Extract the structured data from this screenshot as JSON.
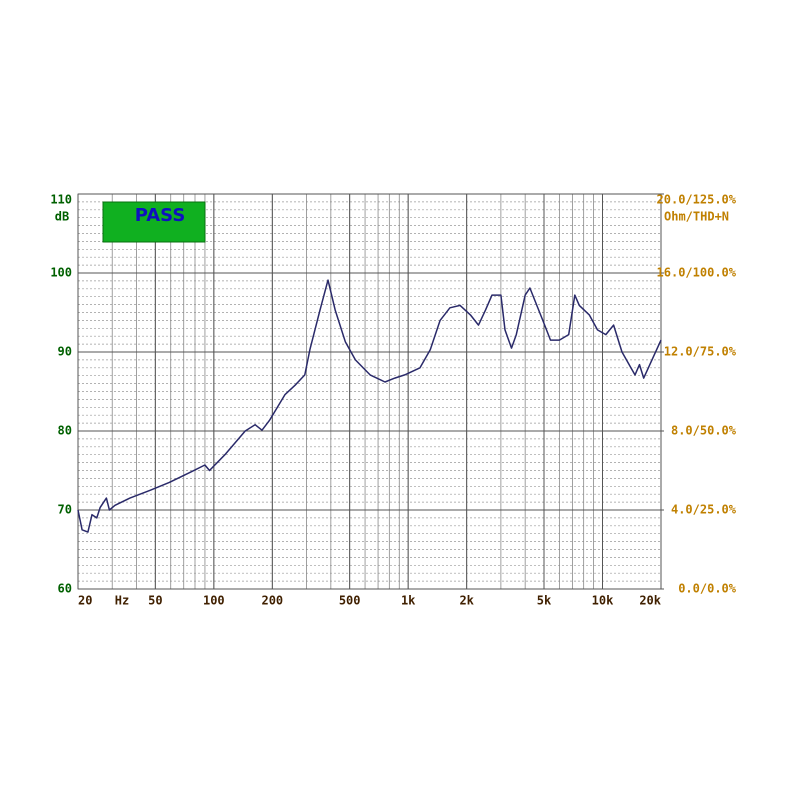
{
  "chart_data": {
    "type": "line",
    "badge": "PASS",
    "ylabel": "dB",
    "xlabel": "Hz",
    "y2label": "Ohm/THD+N",
    "log_x": true,
    "grid": true,
    "color": "#2a2a6a",
    "xlim": [
      20,
      20000
    ],
    "xticks": [
      20,
      50,
      100,
      200,
      500,
      {
        "value": 1000,
        "label": "1k"
      },
      {
        "value": 2000,
        "label": "2k"
      },
      {
        "value": 5000,
        "label": "5k"
      },
      {
        "value": 10000,
        "label": "10k"
      },
      {
        "value": 20000,
        "label": "20k"
      }
    ],
    "ylim": [
      60,
      110
    ],
    "yticks": [
      60,
      70,
      80,
      90,
      100,
      110
    ],
    "y2lim": [
      0,
      20
    ],
    "y2ticks": [
      {
        "value": 0,
        "label": "0.0/0.0%"
      },
      {
        "value": 4,
        "label": "4.0/25.0%"
      },
      {
        "value": 8,
        "label": "8.0/50.0%"
      },
      {
        "value": 12,
        "label": "12.0/75.0%"
      },
      {
        "value": 16,
        "label": "16.0/100.0%"
      },
      {
        "value": 20,
        "label": "20.0/125.0%"
      }
    ],
    "x": [
      20,
      21,
      22.5,
      23.6,
      25,
      26,
      28,
      29,
      31,
      37,
      47,
      59,
      76,
      90,
      95,
      114,
      145,
      163,
      177,
      194,
      232,
      262,
      294,
      312,
      352,
      387,
      421,
      475,
      535,
      637,
      760,
      854,
      960,
      1150,
      1300,
      1460,
      1640,
      1850,
      2090,
      2300,
      2500,
      2700,
      3000,
      3150,
      3400,
      3600,
      4000,
      4230,
      4930,
      5400,
      6000,
      6700,
      7200,
      7600,
      8550,
      9420,
      10400,
      11400,
      12600,
      14000,
      14700,
      15500,
      16300,
      20000
    ],
    "values": [
      70,
      67.5,
      67.2,
      69.4,
      69,
      70.3,
      71.5,
      70,
      70.6,
      71.5,
      72.5,
      73.5,
      74.8,
      75.7,
      75,
      77,
      80,
      80.8,
      80.1,
      81.4,
      84.6,
      85.8,
      87.1,
      90.3,
      95.3,
      99.1,
      95.3,
      91.3,
      89,
      87.1,
      86.2,
      86.7,
      87.1,
      88,
      90.3,
      94,
      95.6,
      95.9,
      94.7,
      93.4,
      95.3,
      97.2,
      97.2,
      92.8,
      90.5,
      92.2,
      97.2,
      98.1,
      94,
      91.5,
      91.5,
      92.2,
      97.2,
      95.9,
      94.7,
      92.8,
      92.2,
      93.4,
      90,
      88,
      87.1,
      88.4,
      86.7,
      91.5
    ]
  }
}
